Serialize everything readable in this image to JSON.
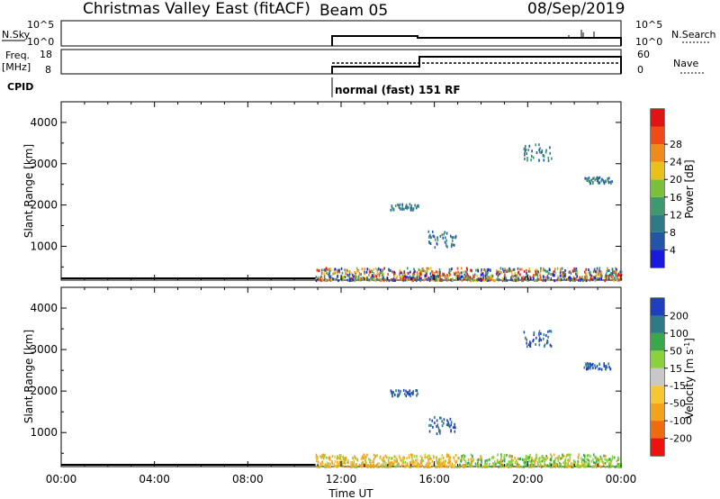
{
  "header": {
    "title": "Christmas Valley East (fitACF)",
    "beam": "Beam 05",
    "date": "08/Sep/2019"
  },
  "status_panels": {
    "nsky": {
      "label": "N.Sky",
      "ticks": [
        "10^5",
        "10^0"
      ]
    },
    "nsearch": {
      "label": "N.Search",
      "ticks": [
        "10^5",
        "10^0"
      ]
    },
    "freq": {
      "label_top": "Freq.",
      "label_bottom": "[MHz]",
      "ticks": [
        "18",
        "8"
      ]
    },
    "nave": {
      "label": "Nave",
      "ticks": [
        "60",
        "0"
      ]
    },
    "cpid": {
      "label": "CPID",
      "mode": "normal (fast) 151 RF"
    }
  },
  "colors": {
    "power": [
      "#1a1adf",
      "#2255a8",
      "#2e7a86",
      "#3e9a6e",
      "#7cbf3a",
      "#e8c21a",
      "#f08a1a",
      "#f04a18",
      "#e11414"
    ],
    "velocity": [
      "#ee1111",
      "#f06a10",
      "#f3a21b",
      "#f6c633",
      "#c8c8c8",
      "#8ad23b",
      "#39a84a",
      "#2e7a86",
      "#1f3fc2"
    ]
  },
  "chart_data": [
    {
      "type": "heatmap",
      "title": "",
      "xlabel": "",
      "ylabel": "Slant Range [km]",
      "x_ticks": [
        "00:00",
        "04:00",
        "08:00",
        "12:00",
        "16:00",
        "20:00",
        "00:00"
      ],
      "xlim_hours": [
        0,
        24
      ],
      "y_ticks": [
        1000,
        2000,
        3000,
        4000
      ],
      "ylim": [
        180,
        4500
      ],
      "colorbar": {
        "label": "Power [dB]",
        "ticks": [
          4,
          8,
          12,
          16,
          20,
          24,
          28
        ],
        "range": [
          0,
          30
        ]
      },
      "data_start_hour": 10.9,
      "features": [
        {
          "name": "near-range band",
          "hours": [
            10.9,
            24
          ],
          "range_km": [
            200,
            500
          ]
        },
        {
          "name": "echo patch",
          "hour": 20.4,
          "range_km": [
            3100,
            3500
          ]
        },
        {
          "name": "echo patch",
          "hour": 14.7,
          "range_km": [
            1900,
            2050
          ]
        },
        {
          "name": "echo patch",
          "hour": 16.3,
          "range_km": [
            1000,
            1400
          ]
        },
        {
          "name": "echo patch",
          "hour": 23.0,
          "range_km": [
            2550,
            2700
          ]
        }
      ]
    },
    {
      "type": "heatmap",
      "title": "",
      "xlabel": "Time UT",
      "ylabel": "Slant Range [km]",
      "x_ticks": [
        "00:00",
        "04:00",
        "08:00",
        "12:00",
        "16:00",
        "20:00",
        "00:00"
      ],
      "xlim_hours": [
        0,
        24
      ],
      "y_ticks": [
        1000,
        2000,
        3000,
        4000
      ],
      "ylim": [
        180,
        4500
      ],
      "colorbar": {
        "label": "Velocity [m s^-1]",
        "ticks": [
          "-200",
          "-100",
          "-50",
          "-15",
          "15",
          "50",
          "100",
          "200"
        ]
      },
      "data_start_hour": 10.9,
      "features": [
        {
          "name": "near-range band",
          "hours": [
            10.9,
            24
          ],
          "range_km": [
            200,
            500
          ]
        },
        {
          "name": "echo patch",
          "hour": 20.4,
          "range_km": [
            3100,
            3500
          ]
        },
        {
          "name": "echo patch",
          "hour": 14.7,
          "range_km": [
            1900,
            2050
          ]
        },
        {
          "name": "echo patch",
          "hour": 16.3,
          "range_km": [
            1000,
            1400
          ]
        },
        {
          "name": "echo patch",
          "hour": 23.0,
          "range_km": [
            2550,
            2700
          ]
        }
      ]
    }
  ]
}
